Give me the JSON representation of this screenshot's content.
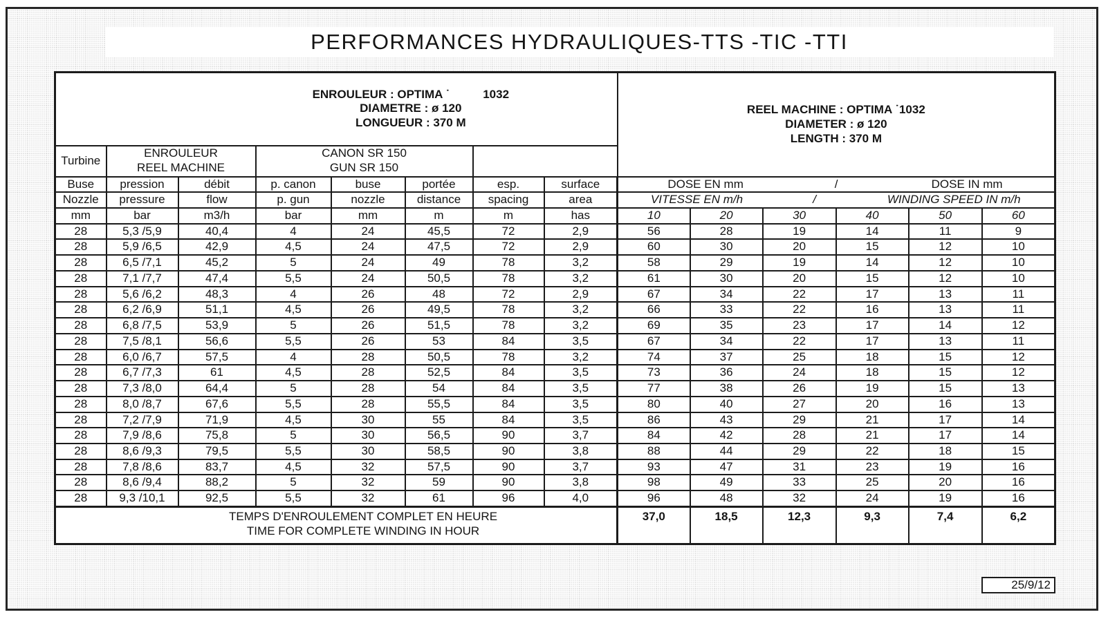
{
  "page": {
    "title": "PERFORMANCES HYDRAULIQUES-TTS -TIC -TTI",
    "date": "25/9/12"
  },
  "machine_info": {
    "fr": {
      "line1": "ENROULEUR : OPTIMA ˙",
      "line1_number": "1032",
      "line2": "DIAMETRE : ø 120",
      "line3": "LONGUEUR : 370 M"
    },
    "en": {
      "line1": "REEL MACHINE : OPTIMA ˙1032",
      "line2": "DIAMETER : ø 120",
      "line3": "LENGTH : 370 M"
    }
  },
  "table": {
    "group_headers": {
      "turbine": "Turbine",
      "enrouleur_fr": "ENROULEUR",
      "enrouleur_en": "REEL MACHINE",
      "canon_fr": "CANON SR 150",
      "canon_en": "GUN SR 150"
    },
    "columns_fr": [
      "Buse",
      "pression",
      "débit",
      "p. canon",
      "buse",
      "portée",
      "esp.",
      "surface"
    ],
    "columns_en": [
      "Nozzle",
      "pressure",
      "flow",
      "p. gun",
      "nozzle",
      "distance",
      "spacing",
      "area"
    ],
    "columns_units": [
      "mm",
      "bar",
      "m3/h",
      "bar",
      "mm",
      "m",
      "m",
      "has"
    ],
    "dose_header": {
      "fr": "DOSE EN mm",
      "sep": "/",
      "en": "DOSE IN mm"
    },
    "speed_header": {
      "fr": "VITESSE EN m/h",
      "sep": "/",
      "en": "WINDING SPEED IN m/h"
    },
    "speed_columns": [
      "10",
      "20",
      "30",
      "40",
      "50",
      "60"
    ],
    "rows": [
      [
        "28",
        "5,3 /5,9",
        "40,4",
        "4",
        "24",
        "45,5",
        "72",
        "2,9",
        "56",
        "28",
        "19",
        "14",
        "11",
        "9"
      ],
      [
        "28",
        "5,9 /6,5",
        "42,9",
        "4,5",
        "24",
        "47,5",
        "72",
        "2,9",
        "60",
        "30",
        "20",
        "15",
        "12",
        "10"
      ],
      [
        "28",
        "6,5 /7,1",
        "45,2",
        "5",
        "24",
        "49",
        "78",
        "3,2",
        "58",
        "29",
        "19",
        "14",
        "12",
        "10"
      ],
      [
        "28",
        "7,1 /7,7",
        "47,4",
        "5,5",
        "24",
        "50,5",
        "78",
        "3,2",
        "61",
        "30",
        "20",
        "15",
        "12",
        "10"
      ],
      [
        "28",
        "5,6 /6,2",
        "48,3",
        "4",
        "26",
        "48",
        "72",
        "2,9",
        "67",
        "34",
        "22",
        "17",
        "13",
        "11"
      ],
      [
        "28",
        "6,2 /6,9",
        "51,1",
        "4,5",
        "26",
        "49,5",
        "78",
        "3,2",
        "66",
        "33",
        "22",
        "16",
        "13",
        "11"
      ],
      [
        "28",
        "6,8 /7,5",
        "53,9",
        "5",
        "26",
        "51,5",
        "78",
        "3,2",
        "69",
        "35",
        "23",
        "17",
        "14",
        "12"
      ],
      [
        "28",
        "7,5 /8,1",
        "56,6",
        "5,5",
        "26",
        "53",
        "84",
        "3,5",
        "67",
        "34",
        "22",
        "17",
        "13",
        "11"
      ],
      [
        "28",
        "6,0 /6,7",
        "57,5",
        "4",
        "28",
        "50,5",
        "78",
        "3,2",
        "74",
        "37",
        "25",
        "18",
        "15",
        "12"
      ],
      [
        "28",
        "6,7 /7,3",
        "61",
        "4,5",
        "28",
        "52,5",
        "84",
        "3,5",
        "73",
        "36",
        "24",
        "18",
        "15",
        "12"
      ],
      [
        "28",
        "7,3 /8,0",
        "64,4",
        "5",
        "28",
        "54",
        "84",
        "3,5",
        "77",
        "38",
        "26",
        "19",
        "15",
        "13"
      ],
      [
        "28",
        "8,0 /8,7",
        "67,6",
        "5,5",
        "28",
        "55,5",
        "84",
        "3,5",
        "80",
        "40",
        "27",
        "20",
        "16",
        "13"
      ],
      [
        "28",
        "7,2 /7,9",
        "71,9",
        "4,5",
        "30",
        "55",
        "84",
        "3,5",
        "86",
        "43",
        "29",
        "21",
        "17",
        "14"
      ],
      [
        "28",
        "7,9 /8,6",
        "75,8",
        "5",
        "30",
        "56,5",
        "90",
        "3,7",
        "84",
        "42",
        "28",
        "21",
        "17",
        "14"
      ],
      [
        "28",
        "8,6 /9,3",
        "79,5",
        "5,5",
        "30",
        "58,5",
        "90",
        "3,8",
        "88",
        "44",
        "29",
        "22",
        "18",
        "15"
      ],
      [
        "28",
        "7,8 /8,6",
        "83,7",
        "4,5",
        "32",
        "57,5",
        "90",
        "3,7",
        "93",
        "47",
        "31",
        "23",
        "19",
        "16"
      ],
      [
        "28",
        "8,6 /9,4",
        "88,2",
        "5",
        "32",
        "59",
        "90",
        "3,8",
        "98",
        "49",
        "33",
        "25",
        "20",
        "16"
      ],
      [
        "28",
        "9,3 /10,1",
        "92,5",
        "5,5",
        "32",
        "61",
        "96",
        "4,0",
        "96",
        "48",
        "32",
        "24",
        "19",
        "16"
      ]
    ],
    "footer": {
      "label_fr": "TEMPS D'ENROULEMENT COMPLET EN HEURE",
      "label_en": "TIME FOR COMPLETE WINDING IN HOUR",
      "totals": [
        "37,0",
        "18,5",
        "12,3",
        "9,3",
        "7,4",
        "6,2"
      ]
    }
  }
}
